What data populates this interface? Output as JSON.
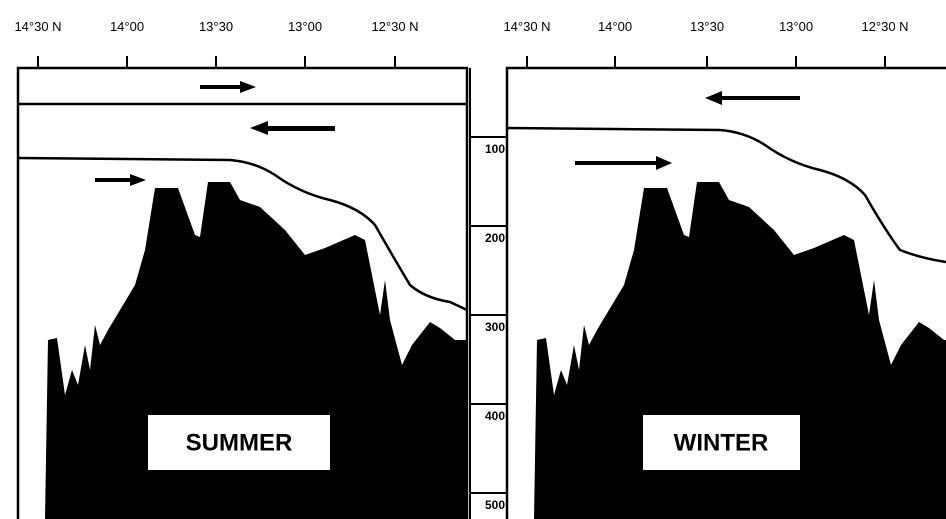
{
  "panels": [
    {
      "label": "SUMMER",
      "latitudes": [
        "14°30 N",
        "14°00",
        "13°30",
        "13°00",
        "12°30 N"
      ]
    },
    {
      "label": "WINTER",
      "latitudes": [
        "14°30 N",
        "14°00",
        "13°30",
        "13°00",
        "12°30 N"
      ]
    }
  ],
  "depths": [
    100,
    200,
    300,
    400,
    500
  ]
}
